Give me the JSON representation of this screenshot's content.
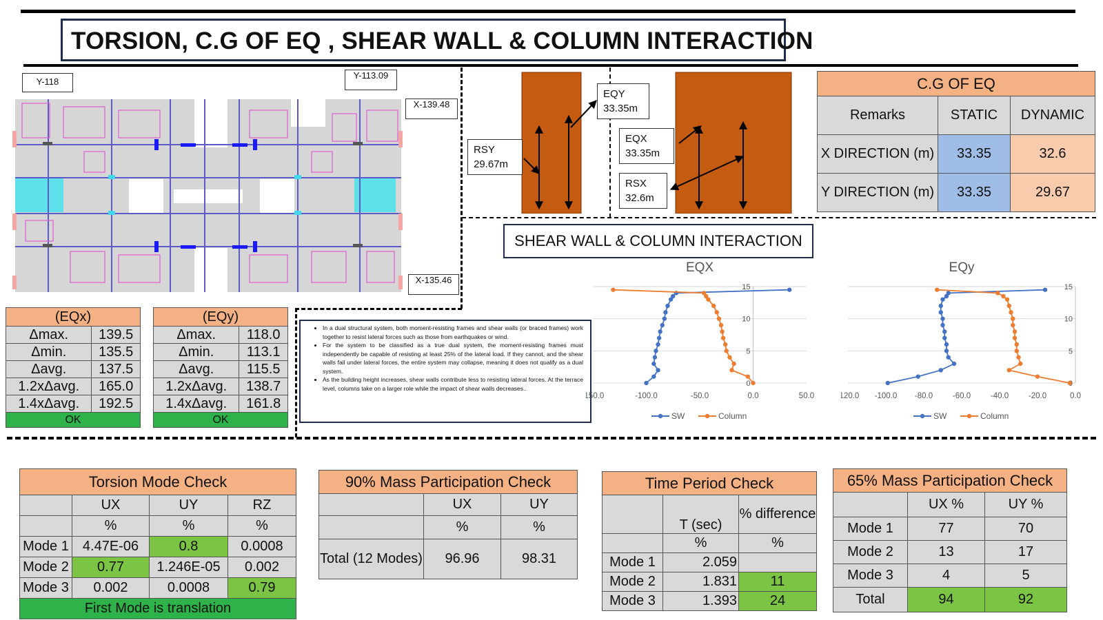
{
  "title": "TORSION, C.G OF EQ , SHEAR WALL & COLUMN INTERACTION",
  "plan_labels": {
    "y118": "Y-118",
    "y113": "Y-113.09",
    "x139": "X-139.48",
    "x135": "X-135.46"
  },
  "eqx_table": {
    "header": "(EQx)",
    "rows": [
      {
        "label": "Δmax.",
        "value": "139.5"
      },
      {
        "label": "Δmin.",
        "value": "135.5"
      },
      {
        "label": "Δavg.",
        "value": "137.5"
      },
      {
        "label": "1.2xΔavg.",
        "value": "165.0"
      },
      {
        "label": "1.4xΔavg.",
        "value": "192.5"
      }
    ],
    "status": "OK"
  },
  "eqy_table": {
    "header": "(EQy)",
    "rows": [
      {
        "label": "Δmax.",
        "value": "118.0"
      },
      {
        "label": "Δmin.",
        "value": "113.1"
      },
      {
        "label": "Δavg.",
        "value": "115.5"
      },
      {
        "label": "1.2xΔavg.",
        "value": "138.7"
      },
      {
        "label": "1.4xΔavg.",
        "value": "161.8"
      }
    ],
    "status": "OK"
  },
  "annotations": {
    "eqy": [
      "EQY",
      "33.35m"
    ],
    "rsy": [
      "RSY",
      "29.67m"
    ],
    "eqx": [
      "EQX",
      "33.35m"
    ],
    "rsx": [
      "RSX",
      "32.6m"
    ]
  },
  "cg_table": {
    "title": "C.G OF EQ",
    "headers": [
      "Remarks",
      "STATIC",
      "DYNAMIC"
    ],
    "rows": [
      [
        "X DIRECTION (m)",
        "33.35",
        "32.6"
      ],
      [
        "Y DIRECTION (m)",
        "33.35",
        "29.67"
      ]
    ]
  },
  "notes": [
    "In a dual structural system, both moment-resisting frames and shear walls (or braced frames) work together to resist lateral forces such as those from earthquakes or wind.",
    "For the system to be classified as a true dual system, the moment-resisting frames must independently be capable of resisting at least 25% of the lateral load. If they cannot, and the shear walls fail under lateral forces, the entire system may collapse, meaning it does not qualify as a dual system.",
    "As the building height increases, shear walls contribute less to resisting lateral forces. At the terrace level, columns take on a larger role while the impact of shear walls decreases.."
  ],
  "sw_title": "SHEAR WALL & COLUMN INTERACTION",
  "chart_data": [
    {
      "type": "line",
      "title": "EQX",
      "xlim": [
        -150,
        50
      ],
      "ylim": [
        0,
        15
      ],
      "xticks": [
        "-150.0",
        "-100.0",
        "-50.0",
        "0.0",
        "50.0"
      ],
      "yticks": [
        "0",
        "5",
        "10",
        "15"
      ],
      "series": [
        {
          "name": "SW",
          "color": "#4472c4",
          "x": [
            -100,
            -93,
            -89,
            -93,
            -92,
            -91,
            -89,
            -88,
            -87,
            -85,
            -83,
            -82,
            -80,
            -77,
            -75,
            -72,
            34
          ],
          "y": [
            0,
            1,
            2,
            3,
            4,
            5,
            6,
            7,
            8,
            9,
            10,
            11,
            12,
            13,
            13.5,
            14,
            14.5
          ]
        },
        {
          "name": "Column",
          "color": "#ed7d31",
          "x": [
            0,
            -5,
            -20,
            -18,
            -22,
            -25,
            -26,
            -28,
            -29,
            -30,
            -32,
            -34,
            -37,
            -42,
            -44,
            -46,
            -131
          ],
          "y": [
            0,
            1,
            2,
            3,
            4,
            5,
            6,
            7,
            8,
            9,
            10,
            11,
            12,
            13,
            13.5,
            14,
            14.5
          ]
        }
      ]
    },
    {
      "type": "line",
      "title": "EQy",
      "xlim": [
        -120,
        0
      ],
      "ylim": [
        0,
        15
      ],
      "xticks": [
        "-120.0",
        "-100.0",
        "-80.0",
        "-60.0",
        "-40.0",
        "-20.0",
        "0.0"
      ],
      "yticks": [
        "0",
        "5",
        "10",
        "15"
      ],
      "series": [
        {
          "name": "SW",
          "color": "#4472c4",
          "x": [
            -99,
            -83,
            -71,
            -64,
            -67,
            -68,
            -68,
            -69,
            -69,
            -70,
            -70,
            -71,
            -71,
            -70,
            -68,
            -67,
            -16
          ],
          "y": [
            0,
            1,
            2,
            3,
            4,
            5,
            6,
            7,
            8,
            9,
            10,
            11,
            12,
            13,
            13.5,
            14,
            14.5
          ]
        },
        {
          "name": "Column",
          "color": "#ed7d31",
          "x": [
            -3,
            -20,
            -35,
            -29,
            -30,
            -31,
            -31,
            -32,
            -32,
            -33,
            -33,
            -34,
            -35,
            -36,
            -38,
            -41,
            -73
          ],
          "y": [
            0,
            1,
            2,
            3,
            4,
            5,
            6,
            7,
            8,
            9,
            10,
            11,
            12,
            13,
            13.5,
            14,
            14.5
          ]
        }
      ]
    }
  ],
  "torsion_table": {
    "title": "Torsion Mode Check",
    "headers": [
      "",
      "UX",
      "UY",
      "RZ"
    ],
    "units": [
      "",
      "%",
      "%",
      "%"
    ],
    "rows": [
      [
        "Mode 1",
        "4.47E-06",
        "0.8",
        "0.0008"
      ],
      [
        "Mode 2",
        "0.77",
        "1.246E-05",
        "0.002"
      ],
      [
        "Mode 3",
        "0.002",
        "0.0008",
        "0.79"
      ]
    ],
    "footer": "First Mode is translation"
  },
  "mass90_table": {
    "title": "90% Mass Participation Check",
    "headers": [
      "",
      "UX",
      "UY"
    ],
    "units": [
      "",
      "%",
      "%"
    ],
    "row": [
      "Total (12 Modes)",
      "96.96",
      "98.31"
    ]
  },
  "period_table": {
    "title": "Time Period Check",
    "headers": [
      "",
      "T (sec)",
      "% difference"
    ],
    "units": [
      "",
      "%",
      "%"
    ],
    "rows": [
      [
        "Mode 1",
        "2.059",
        ""
      ],
      [
        "Mode 2",
        "1.831",
        "11"
      ],
      [
        "Mode 3",
        "1.393",
        "24"
      ]
    ]
  },
  "mass65_table": {
    "title": "65% Mass Participation Check",
    "headers": [
      "",
      "UX %",
      "UY %"
    ],
    "rows": [
      [
        "Mode 1",
        "77",
        "70"
      ],
      [
        "Mode 2",
        "13",
        "17"
      ],
      [
        "Mode 3",
        "4",
        "5"
      ],
      [
        "Total",
        "94",
        "92"
      ]
    ]
  }
}
